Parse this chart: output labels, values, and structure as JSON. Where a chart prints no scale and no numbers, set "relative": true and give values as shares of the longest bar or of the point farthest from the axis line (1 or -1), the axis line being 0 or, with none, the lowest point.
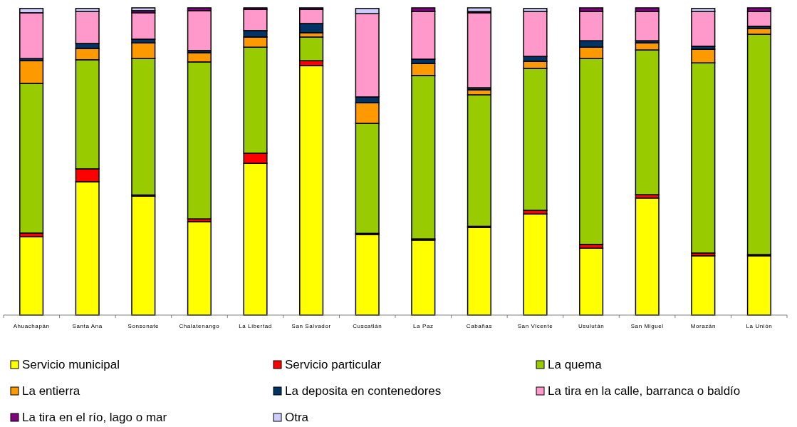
{
  "chart_data": {
    "type": "bar",
    "stacked": true,
    "relative": true,
    "legend": "bottom",
    "categories": [
      "Ahuachapán",
      "Santa Ana",
      "Sonsonate",
      "Chalatenango",
      "La Libertad",
      "San Salvador",
      "Cuscatlán",
      "La Paz",
      "Cabañas",
      "San Vicente",
      "Usulután",
      "San Miguel",
      "Morazán",
      "La Unión"
    ],
    "series": [
      {
        "name": "Servicio municipal",
        "color": "#ffff00",
        "values": [
          0.255,
          0.434,
          0.387,
          0.304,
          0.494,
          0.812,
          0.262,
          0.244,
          0.285,
          0.329,
          0.218,
          0.381,
          0.193,
          0.193
        ]
      },
      {
        "name": "Servicio particular",
        "color": "#ff0000",
        "values": [
          0.012,
          0.042,
          0.004,
          0.009,
          0.033,
          0.016,
          0.004,
          0.004,
          0.004,
          0.012,
          0.012,
          0.011,
          0.009,
          0.004
        ]
      },
      {
        "name": "La quema",
        "color": "#99cc00",
        "values": [
          0.487,
          0.355,
          0.444,
          0.511,
          0.345,
          0.077,
          0.358,
          0.532,
          0.428,
          0.462,
          0.605,
          0.471,
          0.619,
          0.717
        ]
      },
      {
        "name": "La entierra",
        "color": "#ff9900",
        "values": [
          0.074,
          0.037,
          0.051,
          0.03,
          0.033,
          0.014,
          0.067,
          0.039,
          0.016,
          0.023,
          0.037,
          0.023,
          0.044,
          0.019
        ]
      },
      {
        "name": "La deposita en contenedores",
        "color": "#003366",
        "values": [
          0.007,
          0.016,
          0.012,
          0.007,
          0.021,
          0.03,
          0.019,
          0.014,
          0.007,
          0.016,
          0.021,
          0.007,
          0.01,
          0.007
        ]
      },
      {
        "name": "La tira en la calle, barranca o baldío",
        "color": "#ff99cc",
        "values": [
          0.149,
          0.104,
          0.086,
          0.13,
          0.069,
          0.046,
          0.271,
          0.155,
          0.244,
          0.146,
          0.095,
          0.095,
          0.113,
          0.048
        ]
      },
      {
        "name": "La tira en el río, lago o mar",
        "color": "#800080",
        "values": [
          null,
          null,
          0.007,
          0.009,
          0.005,
          0.005,
          null,
          0.012,
          0.004,
          null,
          0.012,
          0.012,
          null,
          0.012
        ]
      },
      {
        "name": "Otra",
        "color": "#ccccff",
        "values": [
          0.014,
          0.01,
          0.009,
          0,
          0,
          0,
          0.017,
          0,
          0.012,
          0.01,
          0,
          0,
          0.01,
          0
        ]
      }
    ]
  }
}
